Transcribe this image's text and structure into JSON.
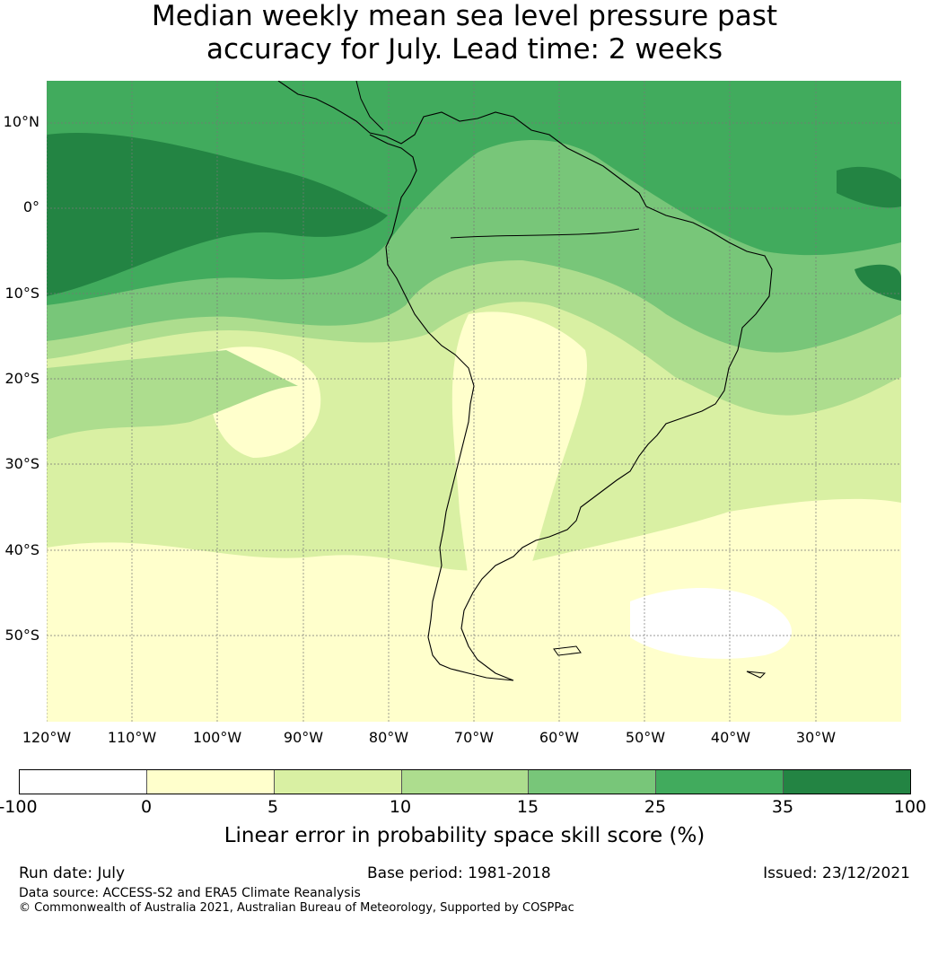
{
  "title_line1": "Median weekly mean sea level pressure past",
  "title_line2": "accuracy for July. Lead time: 2 weeks",
  "map": {
    "lat_labels": [
      "10°N",
      "0°",
      "10°S",
      "20°S",
      "30°S",
      "40°S",
      "50°S"
    ],
    "lon_labels": [
      "120°W",
      "110°W",
      "100°W",
      "90°W",
      "80°W",
      "70°W",
      "60°W",
      "50°W",
      "40°W",
      "30°W"
    ],
    "region": "South America and surrounding oceans"
  },
  "colorbar": {
    "colors": [
      "#ffffff",
      "#ffffcc",
      "#d9f0a3",
      "#addd8e",
      "#78c679",
      "#41ab5d",
      "#238443"
    ],
    "ticks": [
      "-100",
      "0",
      "5",
      "10",
      "15",
      "25",
      "35",
      "100"
    ],
    "label": "Linear error in probability space skill score (%)"
  },
  "footer": {
    "run_date": "Run date: July",
    "base_period": "Base period: 1981-2018",
    "issued": "Issued: 23/12/2021",
    "data_source": "Data source: ACCESS-S2 and ERA5 Climate Reanalysis",
    "copyright": "© Commonwealth of Australia 2021, Australian Bureau of Meteorology, Supported by COSPPac"
  }
}
